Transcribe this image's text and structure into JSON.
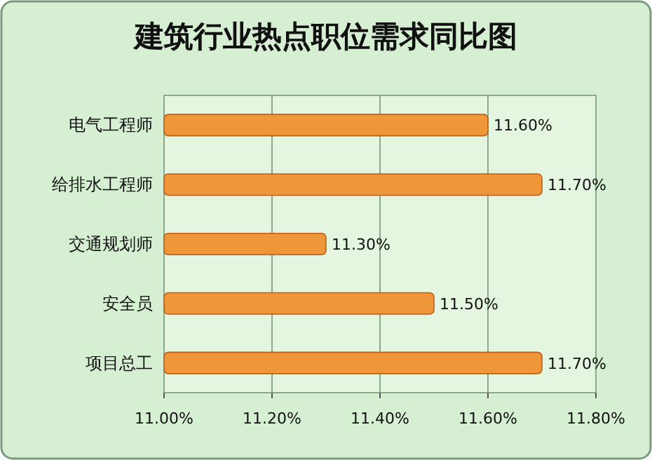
{
  "chart_data": {
    "type": "bar",
    "orientation": "horizontal",
    "title": "建筑行业热点职位需求同比图",
    "categories": [
      "电气工程师",
      "给排水工程师",
      "交通规划师",
      "安全员",
      "项目总工"
    ],
    "values": [
      11.6,
      11.7,
      11.3,
      11.5,
      11.7
    ],
    "value_labels": [
      "11.60%",
      "11.70%",
      "11.30%",
      "11.50%",
      "11.70%"
    ],
    "color": "#f0963a",
    "xlim": [
      11.0,
      11.8
    ],
    "xticks": [
      {
        "value": 11.0,
        "label": "11.00%"
      },
      {
        "value": 11.2,
        "label": "11.20%"
      },
      {
        "value": 11.4,
        "label": "11.40%"
      },
      {
        "value": 11.6,
        "label": "11.60%"
      },
      {
        "value": 11.8,
        "label": "11.80%"
      }
    ],
    "grid": "x"
  }
}
